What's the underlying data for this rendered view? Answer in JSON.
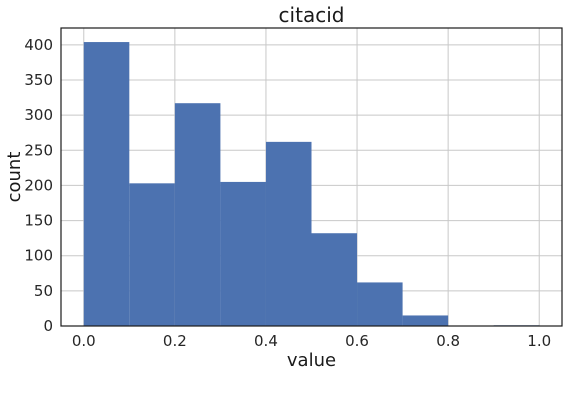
{
  "chart_data": {
    "type": "bar",
    "subtype": "histogram",
    "title": "citacid",
    "xlabel": "value",
    "ylabel": "count",
    "bins": [
      {
        "x0": 0.0,
        "x1": 0.1,
        "count": 404
      },
      {
        "x0": 0.1,
        "x1": 0.2,
        "count": 203
      },
      {
        "x0": 0.2,
        "x1": 0.3,
        "count": 317
      },
      {
        "x0": 0.3,
        "x1": 0.4,
        "count": 205
      },
      {
        "x0": 0.4,
        "x1": 0.5,
        "count": 262
      },
      {
        "x0": 0.5,
        "x1": 0.6,
        "count": 132
      },
      {
        "x0": 0.6,
        "x1": 0.7,
        "count": 62
      },
      {
        "x0": 0.7,
        "x1": 0.8,
        "count": 15
      },
      {
        "x0": 0.8,
        "x1": 0.9,
        "count": 0
      },
      {
        "x0": 0.9,
        "x1": 1.0,
        "count": 1
      }
    ],
    "xlim": [
      -0.05,
      1.05
    ],
    "ylim": [
      0,
      424
    ],
    "xticks": [
      0.0,
      0.2,
      0.4,
      0.6,
      0.8,
      1.0
    ],
    "xtick_labels": [
      "0.0",
      "0.2",
      "0.4",
      "0.6",
      "0.8",
      "1.0"
    ],
    "yticks": [
      0,
      50,
      100,
      150,
      200,
      250,
      300,
      350,
      400
    ],
    "ytick_labels": [
      "0",
      "50",
      "100",
      "150",
      "200",
      "250",
      "300",
      "350",
      "400"
    ],
    "grid": true,
    "legend": "none",
    "bar_color": "#4c72b0",
    "grid_color": "#c8c8c8",
    "background_color": "#ffffff"
  }
}
